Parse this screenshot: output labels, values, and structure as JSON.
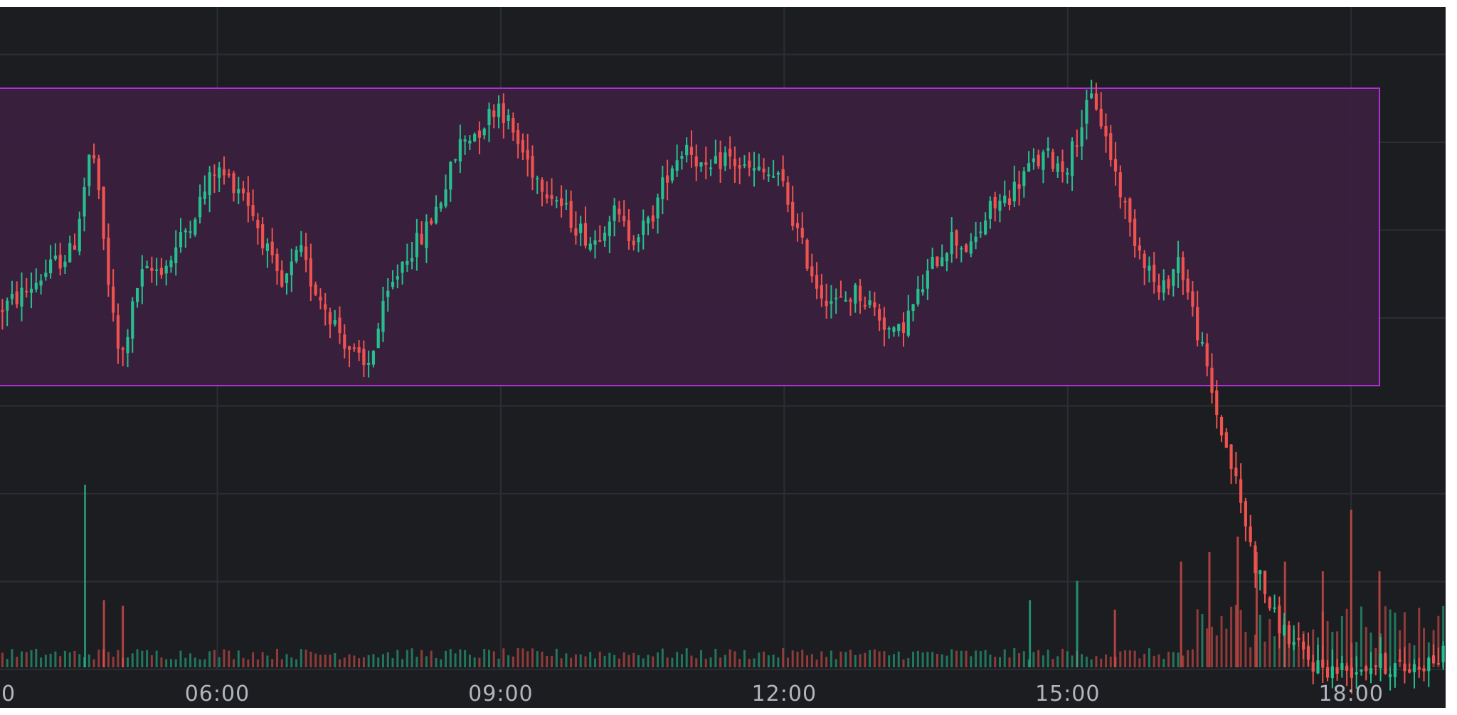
{
  "theme": {
    "background": "#1c1d20",
    "grid": "#2b2e35",
    "up": "#26bf8e",
    "down": "#ef5350",
    "zone_fill": "#3b1f3f",
    "zone_stroke": "#b02fd6",
    "tick_text": "#b2b5be"
  },
  "chart_data": {
    "type": "candlestick",
    "x_axis": {
      "ticks": [
        {
          "label": "0",
          "hour": 3
        },
        {
          "label": "06:00",
          "hour": 6
        },
        {
          "label": "09:00",
          "hour": 9
        },
        {
          "label": "12:00",
          "hour": 12
        },
        {
          "label": "15:00",
          "hour": 15
        },
        {
          "label": "18:00",
          "hour": 18
        }
      ],
      "range_hours": [
        3.7,
        19.0
      ]
    },
    "y_axis": {
      "range": [
        0,
        100
      ],
      "grid_lines": [
        93,
        80,
        67,
        54,
        41,
        28,
        15,
        2
      ]
    },
    "range_zone": {
      "start_hour": 3.7,
      "end_hour": 18.3,
      "low": 44,
      "high": 88
    },
    "price_path": [
      [
        3.7,
        55
      ],
      [
        4.0,
        58
      ],
      [
        4.3,
        62
      ],
      [
        4.5,
        64
      ],
      [
        4.7,
        80
      ],
      [
        4.9,
        56
      ],
      [
        5.0,
        47
      ],
      [
        5.2,
        60
      ],
      [
        5.5,
        62
      ],
      [
        5.8,
        70
      ],
      [
        6.0,
        76
      ],
      [
        6.3,
        73
      ],
      [
        6.5,
        66
      ],
      [
        6.7,
        58
      ],
      [
        6.9,
        64
      ],
      [
        7.0,
        60
      ],
      [
        7.2,
        55
      ],
      [
        7.4,
        50
      ],
      [
        7.6,
        46
      ],
      [
        7.8,
        56
      ],
      [
        8.0,
        63
      ],
      [
        8.2,
        66
      ],
      [
        8.4,
        72
      ],
      [
        8.6,
        80
      ],
      [
        8.8,
        82
      ],
      [
        9.0,
        86
      ],
      [
        9.2,
        80
      ],
      [
        9.4,
        75
      ],
      [
        9.6,
        72
      ],
      [
        9.8,
        68
      ],
      [
        10.0,
        65
      ],
      [
        10.2,
        70
      ],
      [
        10.4,
        66
      ],
      [
        10.6,
        68
      ],
      [
        10.8,
        76
      ],
      [
        11.0,
        80
      ],
      [
        11.2,
        75
      ],
      [
        11.4,
        78
      ],
      [
        11.6,
        76
      ],
      [
        11.9,
        75
      ],
      [
        12.0,
        74
      ],
      [
        12.2,
        65
      ],
      [
        12.4,
        58
      ],
      [
        12.6,
        56
      ],
      [
        12.8,
        58
      ],
      [
        13.0,
        55
      ],
      [
        13.2,
        51
      ],
      [
        13.4,
        56
      ],
      [
        13.6,
        62
      ],
      [
        13.8,
        66
      ],
      [
        14.0,
        64
      ],
      [
        14.2,
        70
      ],
      [
        14.4,
        72
      ],
      [
        14.6,
        76
      ],
      [
        14.8,
        78
      ],
      [
        15.0,
        76
      ],
      [
        15.2,
        84
      ],
      [
        15.3,
        87
      ],
      [
        15.5,
        77
      ],
      [
        15.7,
        67
      ],
      [
        15.9,
        61
      ],
      [
        16.0,
        57
      ],
      [
        16.2,
        63
      ],
      [
        16.4,
        52
      ],
      [
        16.6,
        40
      ],
      [
        16.8,
        30
      ],
      [
        17.0,
        18
      ],
      [
        17.2,
        10
      ],
      [
        17.4,
        6
      ],
      [
        17.6,
        3
      ],
      [
        17.8,
        2
      ],
      [
        18.0,
        2
      ],
      [
        18.3,
        3
      ],
      [
        18.6,
        2
      ],
      [
        19.0,
        4
      ]
    ],
    "candle_count": 300,
    "volume_spikes": [
      {
        "hour": 4.6,
        "level": 0.95,
        "dir": "up"
      },
      {
        "hour": 4.8,
        "level": 0.35,
        "dir": "down"
      },
      {
        "hour": 5.0,
        "level": 0.32,
        "dir": "down"
      },
      {
        "hour": 14.6,
        "level": 0.35,
        "dir": "up"
      },
      {
        "hour": 15.1,
        "level": 0.45,
        "dir": "up"
      },
      {
        "hour": 15.5,
        "level": 0.3,
        "dir": "down"
      },
      {
        "hour": 16.2,
        "level": 0.55,
        "dir": "down"
      },
      {
        "hour": 16.5,
        "level": 0.6,
        "dir": "down"
      },
      {
        "hour": 16.8,
        "level": 0.68,
        "dir": "down"
      },
      {
        "hour": 17.0,
        "level": 0.6,
        "dir": "down"
      },
      {
        "hour": 17.3,
        "level": 0.55,
        "dir": "down"
      },
      {
        "hour": 17.7,
        "level": 0.5,
        "dir": "down"
      },
      {
        "hour": 18.0,
        "level": 0.82,
        "dir": "down"
      },
      {
        "hour": 18.3,
        "level": 0.5,
        "dir": "down"
      }
    ]
  }
}
